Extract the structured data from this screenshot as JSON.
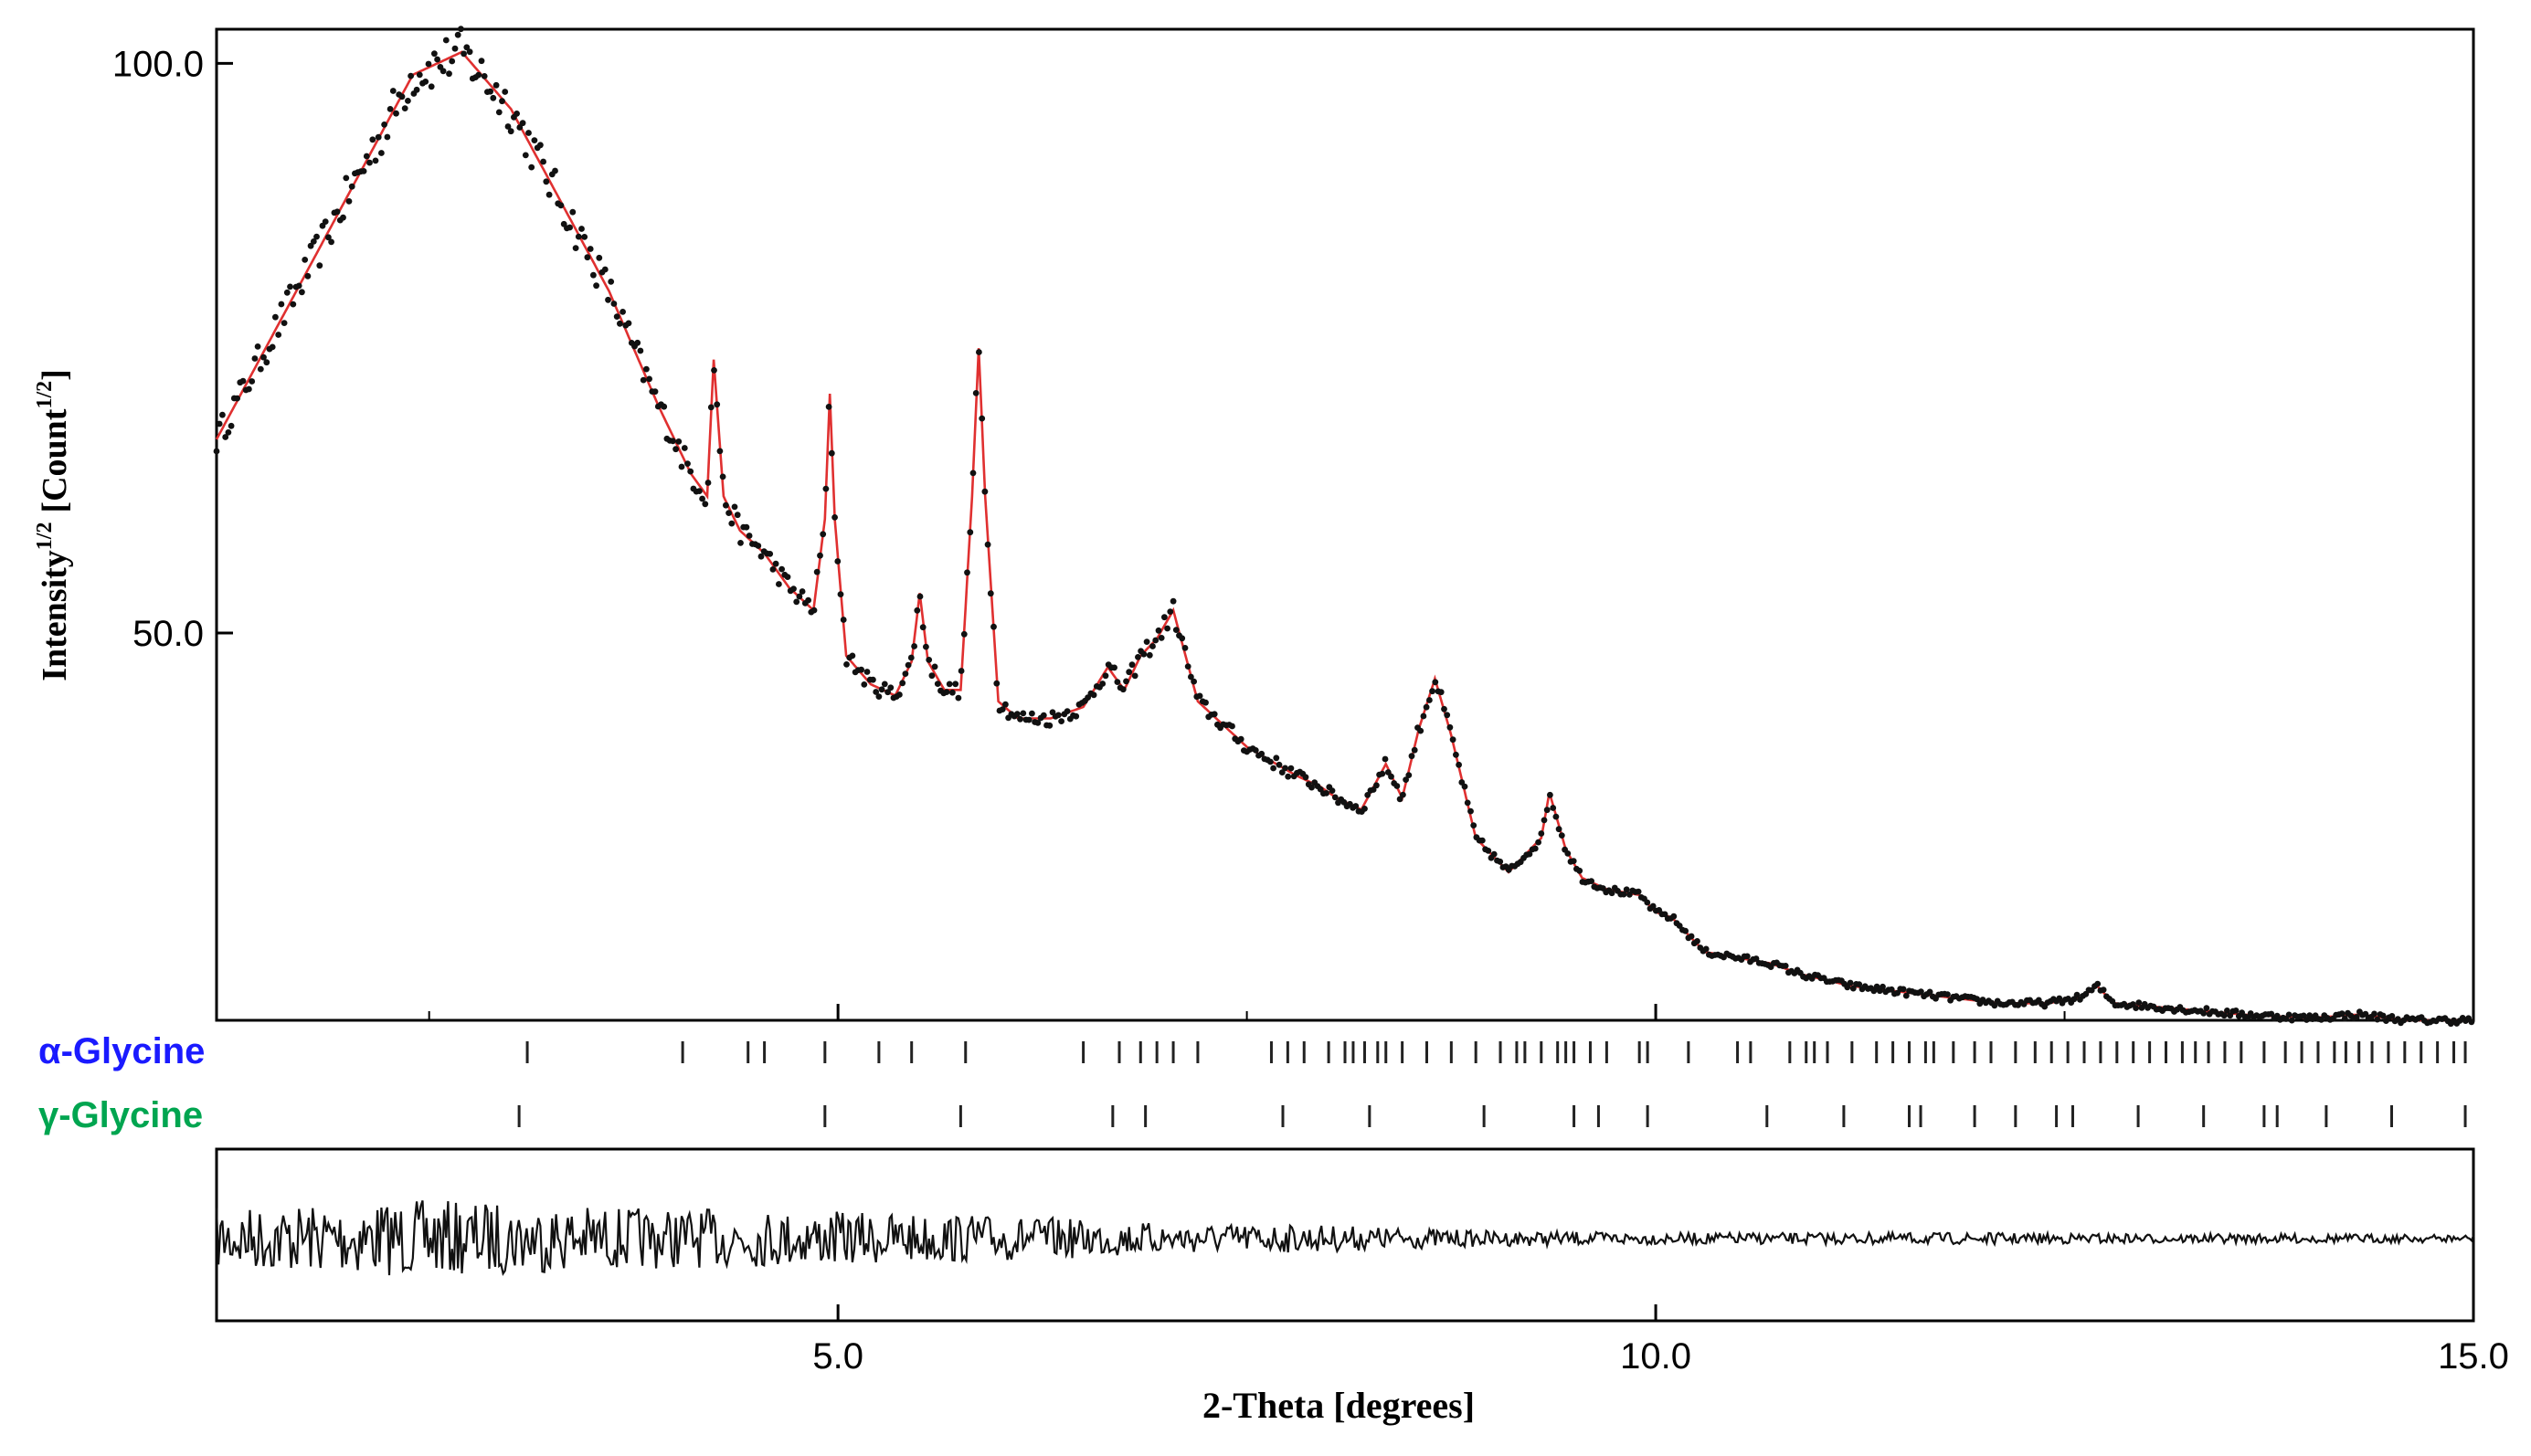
{
  "chart_data": {
    "type": "line",
    "xlabel": "2-Theta [degrees]",
    "ylabel": "Intensity",
    "ylabel_unit": "[Count",
    "ylabel_exponent": "1/2",
    "xlim": [
      1.2,
      15.0
    ],
    "ylim": [
      16,
      103
    ],
    "x_ticks": [
      5.0,
      10.0,
      15.0
    ],
    "x_tick_labels": [
      "5.0",
      "10.0",
      "15.0"
    ],
    "y_ticks": [
      50.0,
      100.0
    ],
    "y_tick_labels": [
      "50.0",
      "100.0"
    ],
    "colors": {
      "observed": "#111111",
      "calculated": "#e03030",
      "difference": "#111111",
      "alpha_label": "#1a1aff",
      "gamma_label": "#00a550"
    },
    "series": [
      {
        "name": "observed",
        "style": "markers",
        "x": [
          1.2,
          1.5,
          1.8,
          2.1,
          2.4,
          2.7,
          3.0,
          3.3,
          3.6,
          3.9,
          4.1,
          4.2,
          4.24,
          4.3,
          4.4,
          4.55,
          4.7,
          4.85,
          4.92,
          4.95,
          4.98,
          5.05,
          5.2,
          5.35,
          5.45,
          5.5,
          5.55,
          5.65,
          5.75,
          5.82,
          5.86,
          5.9,
          5.98,
          6.1,
          6.3,
          6.5,
          6.65,
          6.75,
          6.85,
          6.95,
          7.05,
          7.2,
          7.5,
          7.8,
          7.95,
          8.05,
          8.2,
          8.35,
          8.45,
          8.55,
          8.65,
          8.75,
          8.9,
          9.1,
          9.3,
          9.35,
          9.45,
          9.55,
          9.7,
          9.9,
          10.0,
          10.1,
          10.3,
          10.5,
          10.7,
          10.9,
          11.2,
          11.5,
          11.8,
          12.1,
          12.4,
          12.6,
          12.7,
          12.8,
          13.2,
          13.6,
          14.0,
          14.3,
          14.6,
          15.0
        ],
        "y": [
          67,
          75,
          83,
          91,
          99,
          101,
          96,
          88,
          80,
          70,
          64,
          62,
          74,
          62,
          59,
          57,
          54,
          52,
          60,
          71,
          60,
          48,
          45.5,
          44.5,
          47.5,
          53.5,
          47.5,
          45,
          45,
          62,
          75,
          62,
          44,
          42.5,
          42.5,
          43.5,
          47,
          45,
          48,
          49.5,
          52,
          44,
          40,
          37.5,
          36.5,
          35.5,
          34.5,
          38.5,
          35.5,
          41.5,
          46,
          41,
          32,
          29,
          32,
          36,
          31,
          28.5,
          27.5,
          27,
          25.5,
          25,
          22,
          21.5,
          21,
          20,
          19,
          18.5,
          18,
          17.5,
          17.5,
          18,
          19,
          17.5,
          17,
          16.5,
          16.2,
          16.5,
          16,
          16
        ]
      },
      {
        "name": "calculated",
        "style": "line",
        "x": [
          1.2,
          1.5,
          1.8,
          2.1,
          2.4,
          2.7,
          3.0,
          3.3,
          3.6,
          3.9,
          4.1,
          4.2,
          4.24,
          4.3,
          4.4,
          4.55,
          4.7,
          4.85,
          4.92,
          4.95,
          4.98,
          5.05,
          5.2,
          5.35,
          5.45,
          5.5,
          5.55,
          5.65,
          5.75,
          5.82,
          5.86,
          5.9,
          5.98,
          6.1,
          6.3,
          6.5,
          6.65,
          6.75,
          6.85,
          6.95,
          7.05,
          7.2,
          7.5,
          7.8,
          7.95,
          8.05,
          8.2,
          8.35,
          8.45,
          8.55,
          8.65,
          8.75,
          8.9,
          9.1,
          9.3,
          9.35,
          9.45,
          9.55,
          9.7,
          9.9,
          10.0,
          10.1,
          10.3,
          10.5,
          10.7,
          10.9,
          11.2,
          11.5,
          11.8,
          12.1,
          12.4,
          12.6,
          12.7,
          12.8,
          13.2,
          13.6,
          14.0,
          14.3,
          14.6,
          15.0
        ],
        "y": [
          67,
          75,
          83,
          91,
          99,
          101,
          96,
          88,
          80,
          70,
          64,
          62,
          74,
          62,
          59,
          57,
          54,
          52,
          60,
          71,
          60,
          48,
          45.5,
          44.5,
          47.5,
          53.5,
          47.5,
          45,
          45,
          62,
          75,
          62,
          44,
          42.5,
          42.5,
          43.5,
          47,
          45,
          48,
          49.5,
          52,
          44,
          40,
          37.5,
          36.5,
          35.5,
          34.5,
          38.5,
          35.5,
          41.5,
          46,
          41,
          32,
          29,
          32,
          36,
          31,
          28.5,
          27.5,
          27,
          25.5,
          25,
          22,
          21.5,
          21,
          20,
          19,
          18.5,
          18,
          17.5,
          17.5,
          18,
          19,
          17.5,
          17,
          16.5,
          16.2,
          16.5,
          16,
          16
        ]
      }
    ],
    "phases": [
      {
        "name": "α-Glycine",
        "positions": [
          3.1,
          4.05,
          4.45,
          4.55,
          4.92,
          5.25,
          5.45,
          5.78,
          6.5,
          6.72,
          6.85,
          6.95,
          7.05,
          7.2,
          7.65,
          7.75,
          7.85,
          8.0,
          8.1,
          8.15,
          8.22,
          8.3,
          8.35,
          8.45,
          8.6,
          8.75,
          8.9,
          9.05,
          9.15,
          9.2,
          9.3,
          9.4,
          9.45,
          9.5,
          9.6,
          9.7,
          9.9,
          9.95,
          10.2,
          10.5,
          10.58,
          10.82,
          10.92,
          10.97,
          11.05,
          11.2,
          11.35,
          11.45,
          11.55,
          11.65,
          11.7,
          11.82,
          11.95,
          12.05,
          12.2,
          12.32,
          12.42,
          12.52,
          12.62,
          12.72,
          12.82,
          12.92,
          13.02,
          13.12,
          13.22,
          13.3,
          13.38,
          13.48,
          13.58,
          13.72,
          13.85,
          13.95,
          14.05,
          14.15,
          14.22,
          14.3,
          14.38,
          14.48,
          14.58,
          14.68,
          14.78,
          14.88,
          14.95
        ]
      },
      {
        "name": "γ-Glycine",
        "positions": [
          3.05,
          4.92,
          5.75,
          6.68,
          6.88,
          7.72,
          8.25,
          8.95,
          9.5,
          9.65,
          9.95,
          10.68,
          11.15,
          11.55,
          11.62,
          11.95,
          12.2,
          12.45,
          12.55,
          12.95,
          13.35,
          13.72,
          13.8,
          14.1,
          14.5,
          14.95
        ]
      }
    ],
    "difference": {
      "name": "difference",
      "x": [
        1.2,
        2.5,
        3.7,
        5.0,
        6.0,
        7.0,
        8.0,
        9.0,
        10.0,
        11.0,
        12.0,
        13.0,
        14.0,
        15.0
      ],
      "amplitude": [
        8,
        10,
        8,
        7,
        6,
        4,
        3.5,
        2,
        1.5,
        1.5,
        1.5,
        1.2,
        1.2,
        1
      ]
    }
  }
}
